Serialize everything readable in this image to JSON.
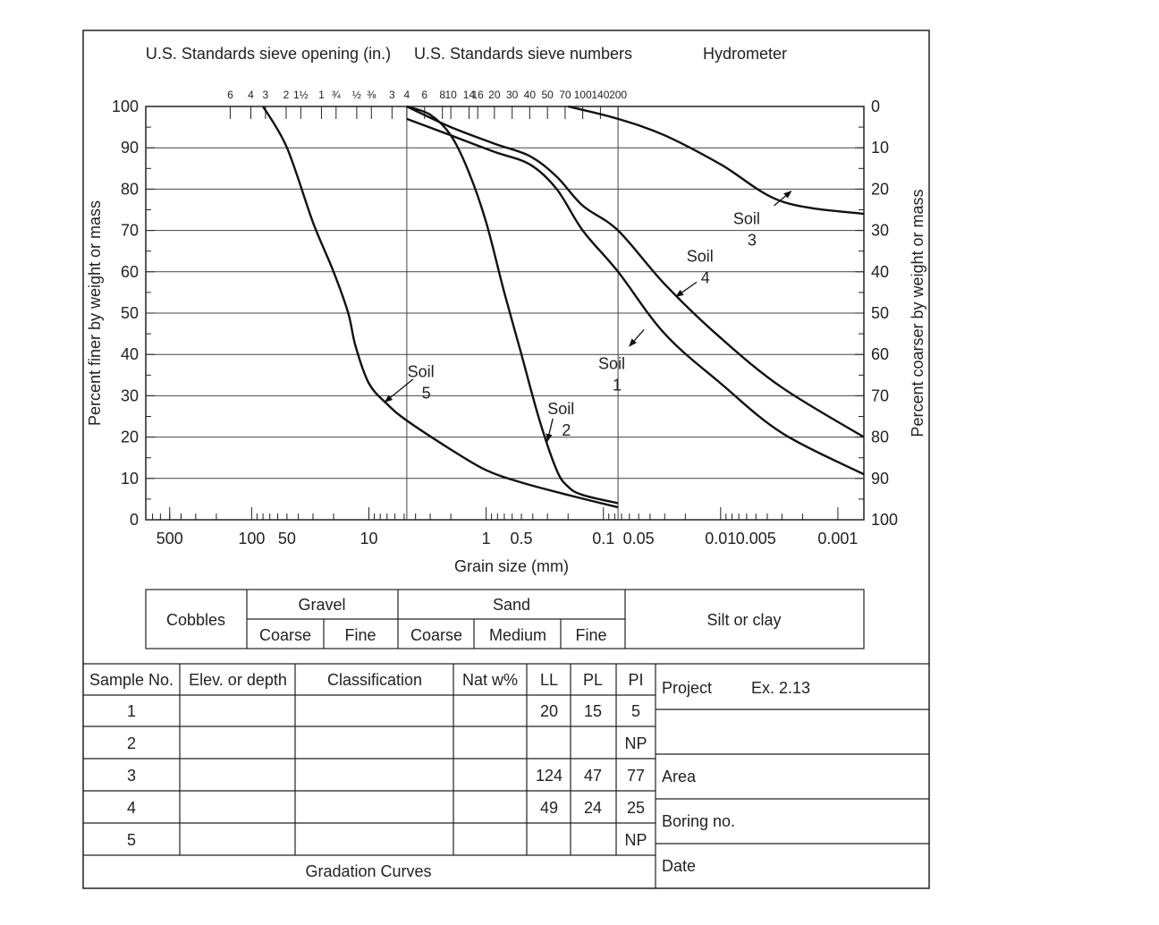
{
  "chart_data": {
    "type": "line",
    "title": "Gradation Curves",
    "header": {
      "sieve_opening": "U.S. Standards sieve opening (in.)",
      "sieve_numbers": "U.S. Standards sieve numbers",
      "hydrometer": "Hydrometer"
    },
    "sieve_opening_ticks": [
      "6",
      "4",
      "3",
      "2",
      "1½",
      "1",
      "¾",
      "½",
      "⅜",
      "3"
    ],
    "sieve_number_ticks": [
      "4",
      "6",
      "8",
      "10",
      "14",
      "16",
      "20",
      "30",
      "40",
      "50",
      "70",
      "100",
      "140",
      "200"
    ],
    "xlabel": "Grain size (mm)",
    "ylabel_left": "Percent finer by weight or mass",
    "ylabel_right": "Percent coarser by weight or mass",
    "xscale": "log-reversed",
    "xlim": [
      800,
      0.0006
    ],
    "ylim": [
      0,
      100
    ],
    "x_tick_labels": [
      {
        "v": 500,
        "label": "500"
      },
      {
        "v": 100,
        "label": "100"
      },
      {
        "v": 50,
        "label": "50"
      },
      {
        "v": 10,
        "label": "10"
      },
      {
        "v": 1,
        "label": "1"
      },
      {
        "v": 0.5,
        "label": "0.5"
      },
      {
        "v": 0.1,
        "label": "0.1"
      },
      {
        "v": 0.05,
        "label": "0.05"
      },
      {
        "v": 0.01,
        "label": "0.01"
      },
      {
        "v": 0.005,
        "label": "0.005"
      },
      {
        "v": 0.001,
        "label": "0.001"
      }
    ],
    "y_ticks_left": [
      "0",
      "10",
      "20",
      "30",
      "40",
      "50",
      "60",
      "70",
      "80",
      "90",
      "100"
    ],
    "y_ticks_right": [
      "100",
      "90",
      "80",
      "70",
      "60",
      "50",
      "40",
      "30",
      "20",
      "10",
      "0"
    ],
    "series": [
      {
        "name": "Soil 1",
        "label_line1": "Soil",
        "label_line2": "1",
        "x": [
          4.75,
          2.0,
          0.85,
          0.425,
          0.25,
          0.15,
          0.075,
          0.03,
          0.01,
          0.003,
          0.0006
        ],
        "y": [
          97,
          93,
          89,
          86,
          80,
          70,
          60,
          45,
          33,
          21,
          11
        ]
      },
      {
        "name": "Soil 2",
        "label_line1": "Soil",
        "label_line2": "2",
        "x": [
          4.75,
          3.0,
          2.0,
          1.4,
          1.0,
          0.7,
          0.5,
          0.35,
          0.25,
          0.2,
          0.15,
          0.075
        ],
        "y": [
          100,
          98,
          93,
          84,
          72,
          55,
          40,
          24,
          12,
          8,
          6,
          4
        ]
      },
      {
        "name": "Soil 3",
        "label_line1": "Soil",
        "label_line2": "3",
        "x": [
          0.2,
          0.075,
          0.03,
          0.01,
          0.003,
          0.0006
        ],
        "y": [
          100,
          97,
          93,
          86,
          77,
          74
        ]
      },
      {
        "name": "Soil 4",
        "label_line1": "Soil",
        "label_line2": "4",
        "x": [
          4.75,
          2.0,
          0.85,
          0.425,
          0.25,
          0.15,
          0.075,
          0.03,
          0.01,
          0.003,
          0.0006
        ],
        "y": [
          100,
          95,
          91,
          88,
          83,
          76,
          70,
          57,
          44,
          32,
          20
        ]
      },
      {
        "name": "Soil 5",
        "label_line1": "Soil",
        "label_line2": "5",
        "x": [
          80,
          50,
          30,
          20,
          15,
          13,
          10,
          7,
          4.75,
          2,
          1,
          0.5,
          0.2,
          0.075
        ],
        "y": [
          100,
          90,
          72,
          60,
          50,
          42,
          33,
          28,
          24,
          17,
          12,
          9,
          6,
          3
        ]
      }
    ]
  },
  "classification_bar": {
    "cobbles": "Cobbles",
    "gravel": "Gravel",
    "gravel_coarse": "Coarse",
    "gravel_fine": "Fine",
    "sand": "Sand",
    "sand_coarse": "Coarse",
    "sand_medium": "Medium",
    "sand_fine": "Fine",
    "silt_clay": "Silt or clay"
  },
  "sample_table": {
    "headers": [
      "Sample No.",
      "Elev. or depth",
      "Classification",
      "Nat w%",
      "LL",
      "PL",
      "PI"
    ],
    "rows": [
      [
        "1",
        "",
        "",
        "",
        "20",
        "15",
        "5"
      ],
      [
        "2",
        "",
        "",
        "",
        "",
        "",
        "NP"
      ],
      [
        "3",
        "",
        "",
        "",
        "124",
        "47",
        "77"
      ],
      [
        "4",
        "",
        "",
        "",
        "49",
        "24",
        "25"
      ],
      [
        "5",
        "",
        "",
        "",
        "",
        "",
        "NP"
      ]
    ],
    "caption": "Gradation Curves"
  },
  "info_panel": {
    "project_label": "Project",
    "project_value": "Ex. 2.13",
    "area_label": "Area",
    "boring_label": "Boring no.",
    "date_label": "Date"
  }
}
